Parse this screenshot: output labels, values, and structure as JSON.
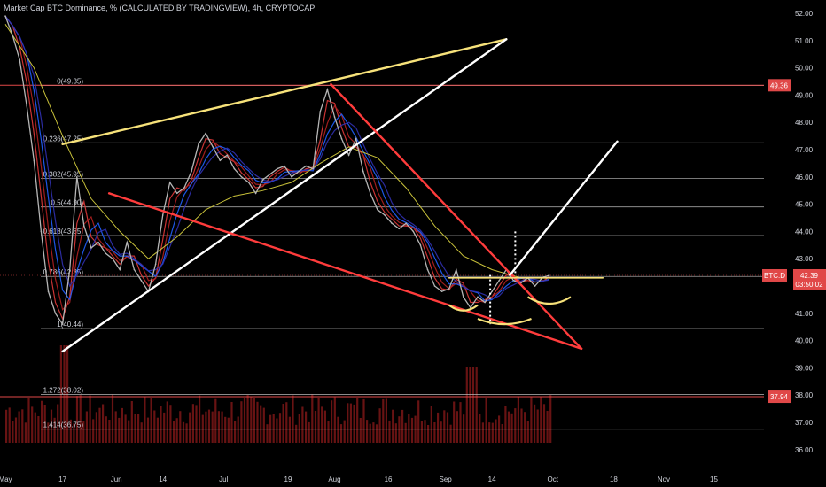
{
  "header": {
    "title": "Market Cap BTC Dominance, % (CALCULATED BY TRADINGVIEW), 4h, CRYPTOCAP"
  },
  "colors": {
    "background": "#000000",
    "price_line": "#b5b5b5",
    "fib_line": "#c8c8c8",
    "red_level": "#e04848",
    "yellow": "#f7e27a",
    "white": "#ffffff",
    "red_trend": "#ff3c3c",
    "volume": "#8b1a1a"
  },
  "chart_data": {
    "type": "line",
    "ylim": [
      35.6,
      52.3
    ],
    "y_ticks": [
      "52.00",
      "51.00",
      "50.00",
      "49.00",
      "48.00",
      "47.00",
      "46.00",
      "45.00",
      "44.00",
      "43.00",
      "42.00",
      "41.00",
      "40.00",
      "39.00",
      "38.00",
      "37.00",
      "36.00"
    ],
    "y_tick_values": [
      52,
      51,
      50,
      49,
      48,
      47,
      46,
      45,
      44,
      43,
      42,
      41,
      40,
      39,
      38,
      37,
      36
    ],
    "x_ticks": [
      "May",
      "17",
      "Jun",
      "14",
      "Jul",
      "19",
      "Aug",
      "16",
      "Sep",
      "14",
      "Oct",
      "18",
      "Nov",
      "15"
    ],
    "x_tick_days": [
      0,
      16,
      31,
      44,
      61,
      79,
      92,
      107,
      123,
      136,
      153,
      170,
      184,
      198
    ],
    "xlim_days": [
      0,
      212
    ],
    "data_end_day": 153,
    "fib_levels": [
      {
        "label": "0(49.35)",
        "value": 49.35
      },
      {
        "label": "0.236(47.25)",
        "value": 47.25
      },
      {
        "label": "0.382(45.95)",
        "value": 45.95
      },
      {
        "label": "0.5(44.90)",
        "value": 44.9
      },
      {
        "label": "0.618(43.85)",
        "value": 43.85
      },
      {
        "label": "0.786(42.35)",
        "value": 42.35
      },
      {
        "label": "1(40.44)",
        "value": 40.44
      },
      {
        "label": "1.272(38.02)",
        "value": 38.02
      },
      {
        "label": "1.414(36.75)",
        "value": 36.75
      }
    ],
    "price_badges": [
      {
        "label": "49.36",
        "value": 49.36
      },
      {
        "label": "37.94",
        "value": 37.94
      }
    ],
    "current": {
      "symbol": "BTC.D",
      "price": "42.39",
      "countdown": "03:50:02",
      "value": 42.39
    },
    "price_series": [
      [
        0,
        51.9
      ],
      [
        2,
        51.2
      ],
      [
        4,
        50.3
      ],
      [
        6,
        48.6
      ],
      [
        8,
        46.6
      ],
      [
        10,
        44.0
      ],
      [
        12,
        41.8
      ],
      [
        14,
        41.0
      ],
      [
        16,
        40.6
      ],
      [
        18,
        42.6
      ],
      [
        20,
        46.0
      ],
      [
        22,
        44.2
      ],
      [
        24,
        43.4
      ],
      [
        26,
        43.6
      ],
      [
        28,
        43.2
      ],
      [
        30,
        43.0
      ],
      [
        32,
        42.6
      ],
      [
        34,
        43.6
      ],
      [
        36,
        42.6
      ],
      [
        38,
        42.2
      ],
      [
        40,
        41.8
      ],
      [
        42,
        42.8
      ],
      [
        44,
        44.6
      ],
      [
        46,
        45.8
      ],
      [
        48,
        45.4
      ],
      [
        50,
        45.6
      ],
      [
        52,
        46.2
      ],
      [
        54,
        47.2
      ],
      [
        56,
        47.6
      ],
      [
        58,
        47.1
      ],
      [
        60,
        46.6
      ],
      [
        62,
        46.8
      ],
      [
        64,
        46.3
      ],
      [
        66,
        46.0
      ],
      [
        68,
        45.8
      ],
      [
        70,
        45.4
      ],
      [
        72,
        45.9
      ],
      [
        74,
        46.1
      ],
      [
        76,
        46.3
      ],
      [
        78,
        46.4
      ],
      [
        80,
        46.0
      ],
      [
        82,
        46.2
      ],
      [
        84,
        46.4
      ],
      [
        86,
        46.3
      ],
      [
        88,
        48.4
      ],
      [
        90,
        49.2
      ],
      [
        92,
        48.2
      ],
      [
        94,
        47.4
      ],
      [
        96,
        46.8
      ],
      [
        98,
        47.4
      ],
      [
        100,
        46.2
      ],
      [
        102,
        45.4
      ],
      [
        104,
        44.8
      ],
      [
        106,
        44.6
      ],
      [
        108,
        44.3
      ],
      [
        110,
        44.1
      ],
      [
        112,
        44.3
      ],
      [
        114,
        44.0
      ],
      [
        116,
        43.5
      ],
      [
        118,
        42.6
      ],
      [
        120,
        42.0
      ],
      [
        122,
        41.8
      ],
      [
        124,
        41.9
      ],
      [
        126,
        42.6
      ],
      [
        128,
        41.6
      ],
      [
        130,
        41.2
      ],
      [
        132,
        41.6
      ],
      [
        134,
        41.4
      ],
      [
        136,
        41.8
      ],
      [
        138,
        42.2
      ],
      [
        140,
        42.6
      ],
      [
        142,
        42.2
      ],
      [
        144,
        42.1
      ],
      [
        146,
        42.3
      ],
      [
        148,
        42.0
      ],
      [
        150,
        42.3
      ],
      [
        152,
        42.39
      ]
    ],
    "yellow_ma": [
      [
        0,
        51.6
      ],
      [
        8,
        50.0
      ],
      [
        16,
        47.5
      ],
      [
        24,
        45.2
      ],
      [
        32,
        44.0
      ],
      [
        40,
        43.0
      ],
      [
        48,
        43.8
      ],
      [
        56,
        44.8
      ],
      [
        64,
        45.3
      ],
      [
        72,
        45.5
      ],
      [
        80,
        45.8
      ],
      [
        88,
        46.5
      ],
      [
        96,
        47.1
      ],
      [
        104,
        46.7
      ],
      [
        112,
        45.6
      ],
      [
        120,
        44.2
      ],
      [
        128,
        43.1
      ],
      [
        136,
        42.6
      ],
      [
        144,
        42.3
      ],
      [
        152,
        42.3
      ]
    ],
    "drawings": [
      {
        "name": "upper-channel-line",
        "color": "yellow",
        "points": [
          [
            16,
            47.2
          ],
          [
            140,
            51.05
          ]
        ]
      },
      {
        "name": "rising-support-line",
        "color": "white",
        "points": [
          [
            16,
            39.6
          ],
          [
            140,
            51.05
          ]
        ]
      },
      {
        "name": "falling-support-line",
        "color": "red",
        "points": [
          [
            29,
            45.4
          ],
          [
            161,
            39.7
          ]
        ]
      },
      {
        "name": "falling-wedge-line",
        "color": "red",
        "points": [
          [
            91,
            49.4
          ],
          [
            161,
            39.7
          ]
        ]
      },
      {
        "name": "breakout-target-line",
        "color": "white",
        "points": [
          [
            141,
            42.4
          ],
          [
            171,
            47.3
          ]
        ]
      },
      {
        "name": "neckline",
        "color": "yellow",
        "points": [
          [
            124,
            42.3
          ],
          [
            167,
            42.3
          ]
        ]
      }
    ]
  }
}
